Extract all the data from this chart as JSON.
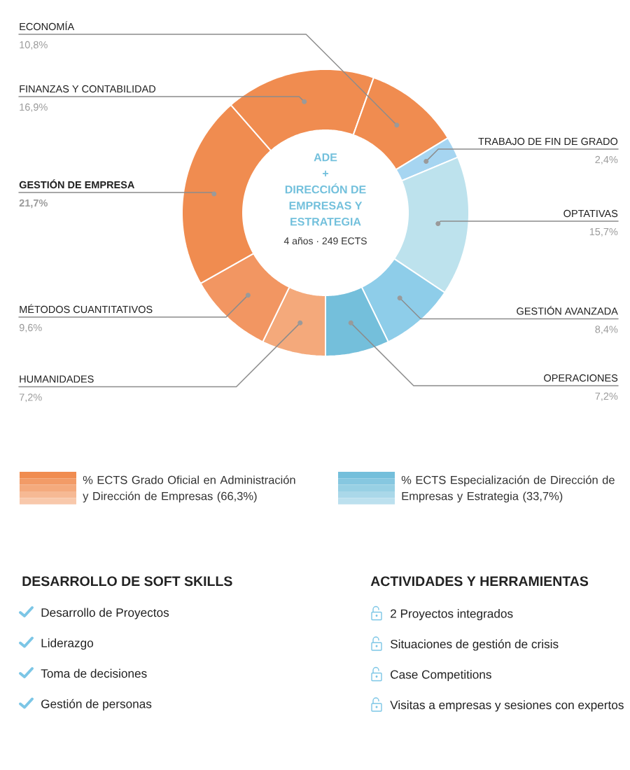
{
  "chart_data": [
    {
      "type": "donut",
      "title": "ADE + DIRECCIÓN DE EMPRESAS Y ESTRATEGIA",
      "subtitle": "4 años · 249 ECTS",
      "categories": [
        "HUMANIDADES",
        "MÉTODOS CUANTITATIVOS",
        "**GESTIÓN DE EMPRESA**",
        "FINANZAS Y CONTABILIDAD",
        "ECONOMÍA",
        "TRABAJO DE FIN DE GRADO",
        "OPTATIVAS",
        "GESTIÓN AVANZADA",
        "OPERACIONES"
      ],
      "values": [
        7.2,
        9.6,
        21.7,
        16.9,
        10.8,
        2.4,
        15.7,
        8.4,
        7.2
      ],
      "colors": [
        "#f4a97b",
        "#f29662",
        "#f08c50",
        "#f08c50",
        "#f08c50",
        "#a6d5f1",
        "#bde2ed",
        "#8ecde9",
        "#74bfdb"
      ],
      "value_labels": [
        "7,2%",
        "9,6%",
        "**21,7%**",
        "16,9%",
        "10,8%",
        "2,4%",
        "15,7%",
        "8,4%",
        "7,2%"
      ],
      "annotations": [
        "% ECTS Grado Oficial en Administración y Dirección de Empresas (66,3%)",
        "% ECTS Especialización de Dirección de Empresas y Estrategia (33,7%)"
      ]
    },
    {
      "type": "other",
      "title": "DESARROLLO DE SOFT SKILLS",
      "annotations": [
        "Desarrollo de Proyectos",
        "Liderazgo",
        "Toma de decisiones",
        "Gestión de personas"
      ]
    },
    {
      "type": "other",
      "title": "ACTIVIDADES Y HERRAMIENTAS",
      "annotations": [
        "2 Proyectos integrados",
        "Situaciones de gestión de crisis",
        "Case Competitions",
        "Visitas a empresas y sesiones con expertos"
      ]
    }
  ]
}
